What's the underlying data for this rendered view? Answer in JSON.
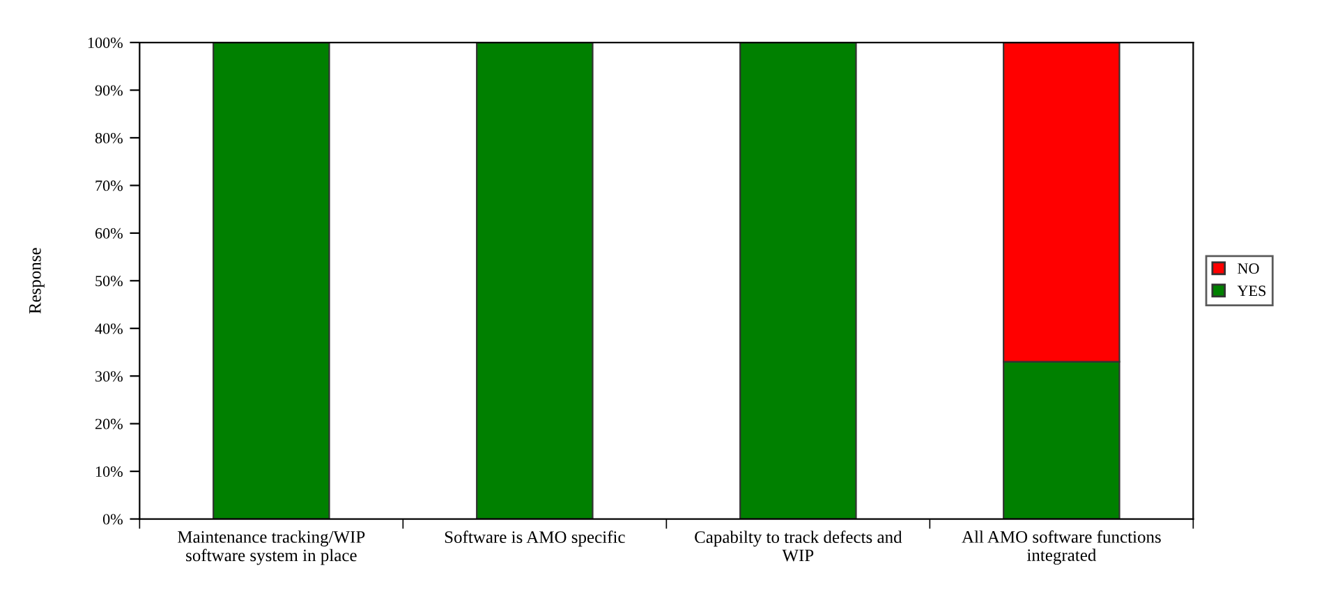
{
  "chart_data": {
    "type": "bar",
    "stacked": true,
    "ylabel": "Response",
    "categories": [
      "Maintenance tracking/WIP\nsoftware system in place",
      "Software is AMO specific",
      "Capabilty to track defects and\nWIP",
      "All AMO software functions\nintegrated"
    ],
    "series": [
      {
        "name": "YES",
        "color": "#008000",
        "values": [
          100,
          100,
          100,
          33
        ]
      },
      {
        "name": "NO",
        "color": "#ff0000",
        "values": [
          null,
          null,
          null,
          67
        ]
      }
    ],
    "ylim": [
      0,
      100
    ],
    "yticks": [
      {
        "value": 0,
        "label": "0%"
      },
      {
        "value": 10,
        "label": "10%"
      },
      {
        "value": 20,
        "label": "20%"
      },
      {
        "value": 30,
        "label": "30%"
      },
      {
        "value": 40,
        "label": "40%"
      },
      {
        "value": 50,
        "label": "50%"
      },
      {
        "value": 60,
        "label": "60%"
      },
      {
        "value": 70,
        "label": "70%"
      },
      {
        "value": 80,
        "label": "80%"
      },
      {
        "value": 90,
        "label": "90%"
      },
      {
        "value": 100,
        "label": "100%"
      }
    ],
    "grid": false,
    "legend": "right"
  }
}
